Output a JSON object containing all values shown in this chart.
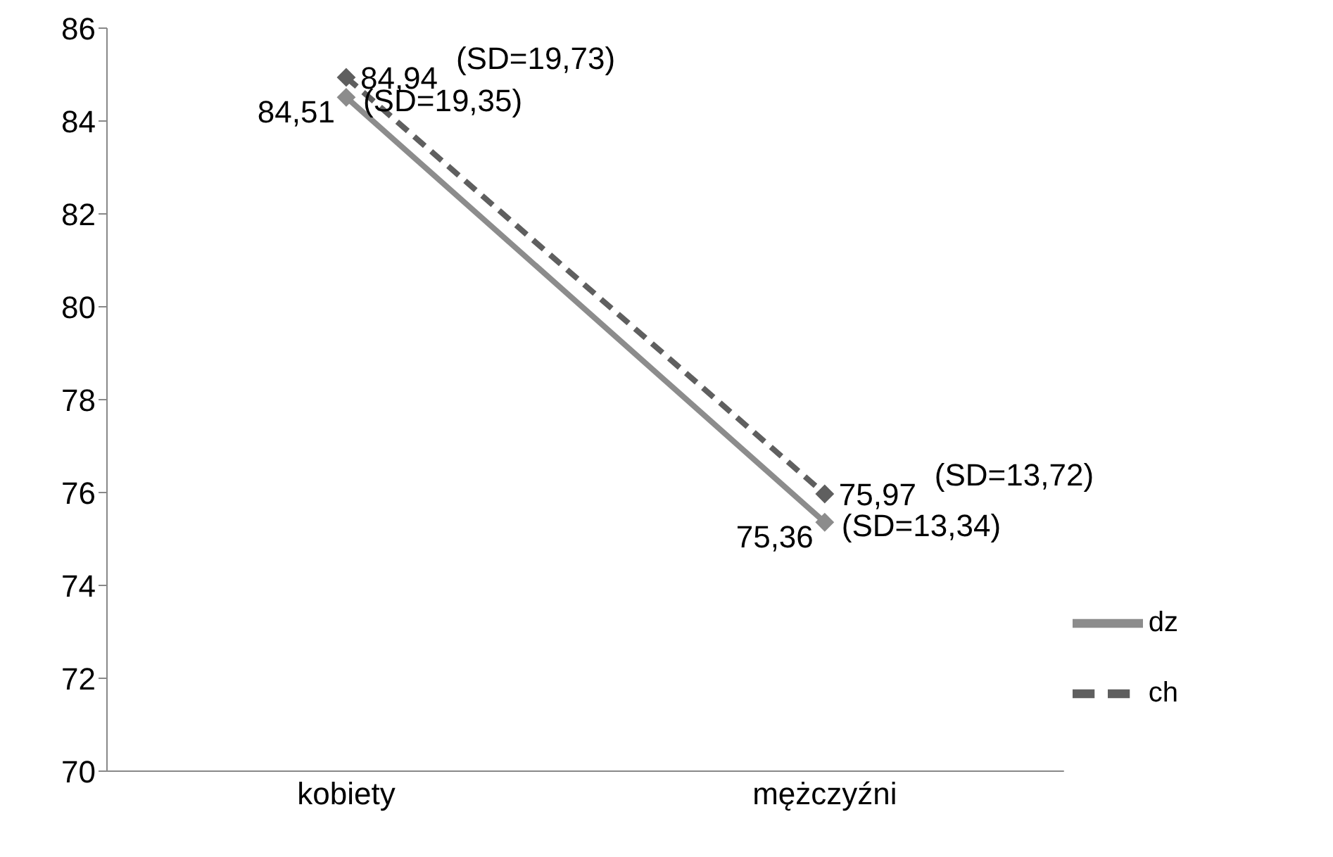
{
  "chart_data": {
    "type": "line",
    "categories": [
      "kobiety",
      "mężczyźni"
    ],
    "series": [
      {
        "name": "dz",
        "color": "#8c8c8c",
        "values": [
          84.51,
          75.36
        ],
        "value_labels": [
          "84,51",
          "75,36"
        ],
        "line_style": "solid"
      },
      {
        "name": "ch",
        "color": "#5f5f5f",
        "values": [
          84.94,
          75.97
        ],
        "value_labels": [
          "84,94",
          "75,97"
        ],
        "line_style": "dashed"
      }
    ],
    "annotations": [
      "(SD=19,35)",
      "(SD=19,73)",
      "(SD=13,34)",
      "(SD=13,72)"
    ],
    "ylim": [
      70,
      86
    ],
    "yticks": [
      70,
      72,
      74,
      76,
      78,
      80,
      82,
      84,
      86
    ],
    "grid": false,
    "legend": "right",
    "marker": "diamond"
  }
}
